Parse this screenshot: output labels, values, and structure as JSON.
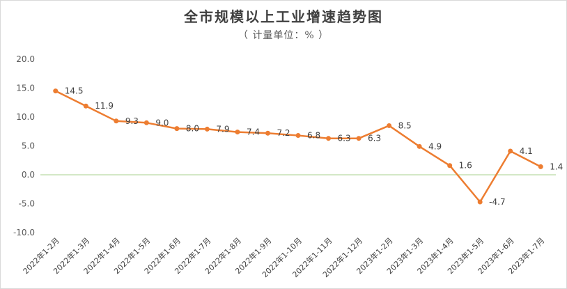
{
  "chart_data": {
    "type": "line",
    "title": "全市规模以上工业增速趋势图",
    "subtitle": "（ 计量单位：% ）",
    "xlabel": "",
    "ylabel": "",
    "ylim": [
      -10,
      20
    ],
    "y_ticks": [
      "20.0",
      "15.0",
      "10.0",
      "5.0",
      "0.0",
      "-5.0",
      "-10.0"
    ],
    "grid": false,
    "legend": "none",
    "colors": {
      "line": "#ED7D31",
      "zero_line": "#A9D18E",
      "axis_text": "#595959"
    },
    "categories": [
      "2022年1-2月",
      "2022年1-3月",
      "2022年1-4月",
      "2022年1-5月",
      "2022年1-6月",
      "2022年1-7月",
      "2022年1-8月",
      "2022年1-9月",
      "2022年1-10月",
      "2022年1-11月",
      "2022年1-12月",
      "2023年1-2月",
      "2023年1-3月",
      "2023年1-4月",
      "2023年1-5月",
      "2023年1-6月",
      "2023年1-7月"
    ],
    "series": [
      {
        "values": [
          14.5,
          11.9,
          9.3,
          9.0,
          8.0,
          7.9,
          7.4,
          7.2,
          6.8,
          6.3,
          6.3,
          8.5,
          4.9,
          1.6,
          -4.7,
          4.1,
          1.4
        ],
        "labels": [
          "14.5",
          "11.9",
          "9.3",
          "9.0",
          "8.0",
          "7.9",
          "7.4",
          "7.2",
          "6.8",
          "6.3",
          "6.3",
          "8.5",
          "4.9",
          "1.6",
          "-4.7",
          "4.1",
          "1.4"
        ]
      }
    ]
  }
}
